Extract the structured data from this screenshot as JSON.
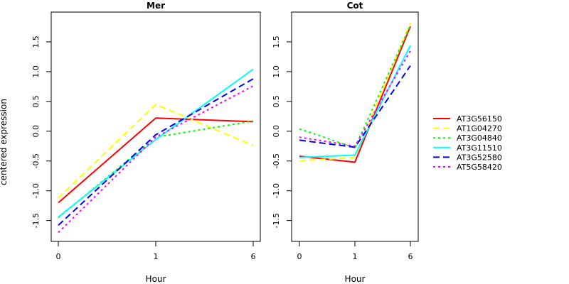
{
  "figure": {
    "ylabel": "centered expression"
  },
  "chart_data": [
    {
      "type": "line",
      "title": "Mer",
      "xlabel": "Hour",
      "ylabel": "centered expression",
      "categories": [
        "0",
        "1",
        "6"
      ],
      "ylim": [
        -1.85,
        2.0
      ],
      "yticks": [
        -1.5,
        -1.0,
        -0.5,
        0.0,
        0.5,
        1.0,
        1.5
      ],
      "ytick_labels": [
        "-1.5",
        "-1.0",
        "-0.5",
        "0.0",
        "0.5",
        "1.0",
        "1.5"
      ],
      "grid": false,
      "series": [
        {
          "name": "AT3G56150",
          "color": "#ff0000",
          "dash": "solid",
          "values": [
            -1.2,
            0.22,
            0.16
          ]
        },
        {
          "name": "AT1G04270",
          "color": "#ffff00",
          "dash": "dashed",
          "values": [
            -1.12,
            0.45,
            -0.24
          ]
        },
        {
          "name": "AT3G04840",
          "color": "#00ff00",
          "dash": "dotted",
          "values": [
            -1.45,
            -0.1,
            0.17
          ]
        },
        {
          "name": "AT3G11510",
          "color": "#00ffff",
          "dash": "solid",
          "values": [
            -1.44,
            -0.14,
            1.04
          ]
        },
        {
          "name": "AT3G52580",
          "color": "#0000ff",
          "dash": "dashed",
          "values": [
            -1.58,
            -0.06,
            0.88
          ]
        },
        {
          "name": "AT5G58420",
          "color": "#ff00ff",
          "dash": "dotted",
          "values": [
            -1.7,
            -0.1,
            0.76
          ]
        }
      ]
    },
    {
      "type": "line",
      "title": "Cot",
      "xlabel": "Hour",
      "categories": [
        "0",
        "1",
        "6"
      ],
      "ylim": [
        -1.85,
        2.0
      ],
      "yticks": [
        -1.5,
        -1.0,
        -0.5,
        0.0,
        0.5,
        1.0,
        1.5
      ],
      "ytick_labels": [
        "-1.5",
        "-1.0",
        "-0.5",
        "0.0",
        "0.5",
        "1.0",
        "1.5"
      ],
      "grid": false,
      "series": [
        {
          "name": "AT3G56150",
          "color": "#ff0000",
          "dash": "solid",
          "values": [
            -0.42,
            -0.52,
            1.76
          ]
        },
        {
          "name": "AT1G04270",
          "color": "#ffff00",
          "dash": "dashed",
          "values": [
            -0.5,
            -0.44,
            1.82
          ]
        },
        {
          "name": "AT3G04840",
          "color": "#00ff00",
          "dash": "dotted",
          "values": [
            0.04,
            -0.28,
            1.78
          ]
        },
        {
          "name": "AT3G11510",
          "color": "#00ffff",
          "dash": "solid",
          "values": [
            -0.44,
            -0.4,
            1.44
          ]
        },
        {
          "name": "AT3G52580",
          "color": "#0000ff",
          "dash": "dashed",
          "values": [
            -0.15,
            -0.27,
            1.1
          ]
        },
        {
          "name": "AT5G58420",
          "color": "#ff00ff",
          "dash": "dotted",
          "values": [
            -0.1,
            -0.25,
            1.35
          ]
        }
      ]
    }
  ],
  "legend": {
    "placement": "right",
    "entries": [
      {
        "name": "AT3G56150",
        "color": "#ff0000",
        "dash": "solid"
      },
      {
        "name": "AT1G04270",
        "color": "#ffff00",
        "dash": "dashed"
      },
      {
        "name": "AT3G04840",
        "color": "#00ff00",
        "dash": "dotted"
      },
      {
        "name": "AT3G11510",
        "color": "#00ffff",
        "dash": "solid"
      },
      {
        "name": "AT3G52580",
        "color": "#0000ff",
        "dash": "dashed"
      },
      {
        "name": "AT5G58420",
        "color": "#ff00ff",
        "dash": "dotted"
      }
    ]
  }
}
